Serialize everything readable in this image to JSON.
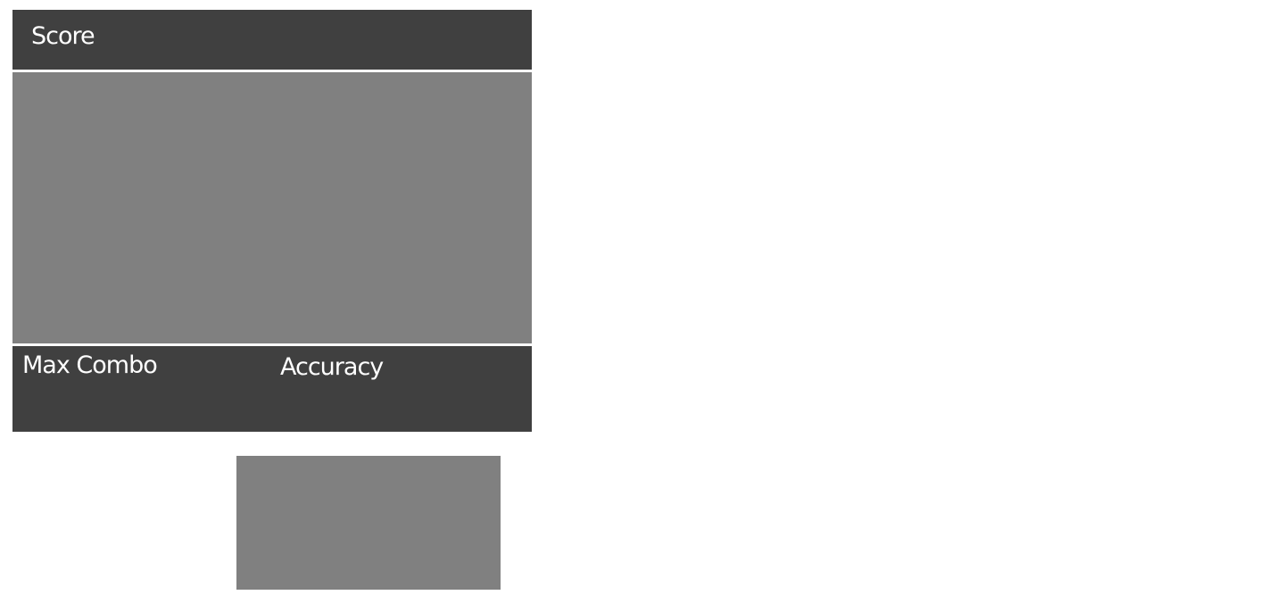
{
  "header": {
    "score_label": "Score"
  },
  "stats": {
    "max_combo_label": "Max Combo",
    "accuracy_label": "Accuracy"
  },
  "colors": {
    "panel_dark": "#404040",
    "panel_gray": "#808080",
    "text": "#ffffff"
  }
}
